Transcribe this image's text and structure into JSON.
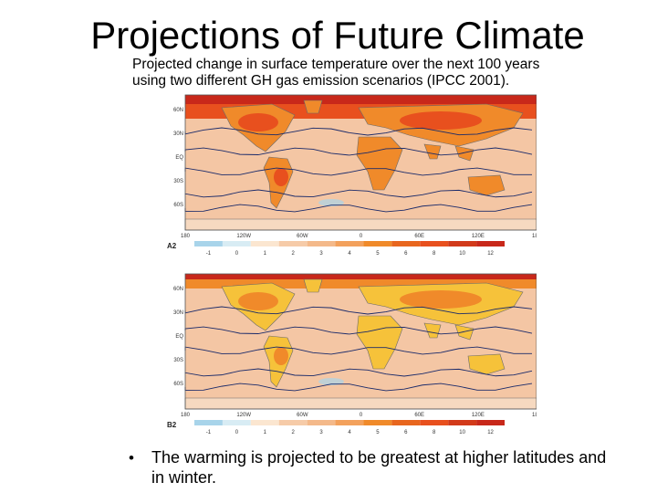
{
  "slide": {
    "title": "Projections of Future Climate",
    "subtitle": "Projected change in surface temperature over the next 100 years using two different GH gas emission scenarios (IPCC 2001).",
    "bullet": "The warming is projected to be greatest at higher latitudes and in winter."
  },
  "maps": [
    {
      "scenario": "A2",
      "lat_labels": [
        "60N",
        "30N",
        "EQ",
        "30S",
        "60S"
      ],
      "lon_labels": [
        "180",
        "120W",
        "60W",
        "0",
        "60E",
        "120E",
        "180"
      ],
      "colorbar_ticks": [
        "-1",
        "0",
        "1",
        "2",
        "3",
        "4",
        "5",
        "6",
        "8",
        "10",
        "12"
      ]
    },
    {
      "scenario": "B2",
      "lat_labels": [
        "60N",
        "30N",
        "EQ",
        "30S",
        "60S"
      ],
      "lon_labels": [
        "180",
        "120W",
        "60W",
        "0",
        "60E",
        "120E",
        "180"
      ],
      "colorbar_ticks": [
        "-1",
        "0",
        "1",
        "2",
        "3",
        "4",
        "5",
        "6",
        "8",
        "10",
        "12"
      ]
    }
  ],
  "colors": {
    "ocean": "#f4c6a4",
    "land_warm": "#f6c23a",
    "land_hot": "#f08a2a",
    "arctic": "#e8501e",
    "arctic_deep": "#c8281a",
    "cool": "#a8d4ea",
    "contour": "#1a2a6a"
  }
}
